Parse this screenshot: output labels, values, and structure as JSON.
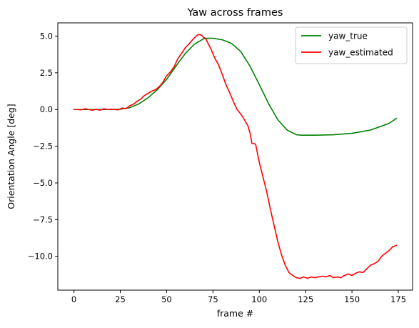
{
  "chart_data": {
    "type": "line",
    "title": "Yaw across frames",
    "xlabel": "frame #",
    "ylabel": "Orientation Angle [deg]",
    "xlim": [
      -8.7,
      182.7
    ],
    "ylim": [
      -12.3,
      5.9
    ],
    "xticks": [
      0,
      25,
      50,
      75,
      100,
      125,
      150,
      175
    ],
    "xtick_labels": [
      "0",
      "25",
      "50",
      "75",
      "100",
      "125",
      "150",
      "175"
    ],
    "yticks": [
      5.0,
      2.5,
      0.0,
      -2.5,
      -5.0,
      -7.5,
      -10.0
    ],
    "ytick_labels": [
      "5.0",
      "2.5",
      "0.0",
      "−2.5",
      "−5.0",
      "−7.5",
      "−10.0"
    ],
    "grid": false,
    "legend_position": "top-right",
    "series": [
      {
        "name": "yaw_true",
        "color": "#008000",
        "x": [
          0,
          10,
          20,
          25,
          30,
          35,
          40,
          45,
          50,
          55,
          60,
          65,
          70,
          72,
          75,
          80,
          85,
          90,
          95,
          100,
          105,
          110,
          115,
          120,
          123,
          125,
          130,
          140,
          150,
          160,
          170,
          174
        ],
        "y": [
          0.0,
          0.0,
          0.0,
          0.02,
          0.12,
          0.38,
          0.8,
          1.35,
          2.05,
          2.95,
          3.8,
          4.45,
          4.82,
          4.85,
          4.85,
          4.75,
          4.5,
          3.95,
          2.95,
          1.7,
          0.4,
          -0.7,
          -1.4,
          -1.72,
          -1.75,
          -1.75,
          -1.75,
          -1.72,
          -1.62,
          -1.4,
          -0.95,
          -0.6
        ]
      },
      {
        "name": "yaw_estimated",
        "color": "#ff0000",
        "x": [
          0,
          2,
          4,
          6,
          8,
          10,
          12,
          14,
          16,
          18,
          20,
          22,
          24,
          26,
          28,
          30,
          32,
          34,
          36,
          38,
          40,
          42,
          44,
          46,
          48,
          50,
          52,
          54,
          56,
          58,
          60,
          62,
          64,
          66,
          67,
          68,
          69,
          70,
          71,
          72,
          73,
          74,
          75,
          76,
          78,
          80,
          82,
          84,
          86,
          88,
          90,
          92,
          94,
          95,
          96,
          98,
          100,
          102,
          104,
          106,
          108,
          110,
          112,
          114,
          116,
          118,
          120,
          122,
          124,
          126,
          128,
          130,
          132,
          134,
          136,
          138,
          140,
          142,
          144,
          146,
          148,
          150,
          152,
          154,
          156,
          158,
          160,
          162,
          164,
          166,
          168,
          170,
          172,
          174
        ],
        "y": [
          0.0,
          0.0,
          -0.02,
          0.05,
          0.0,
          -0.05,
          0.02,
          -0.05,
          0.05,
          0.0,
          0.02,
          0.0,
          -0.02,
          0.1,
          0.05,
          0.25,
          0.35,
          0.55,
          0.7,
          0.95,
          1.1,
          1.25,
          1.35,
          1.55,
          1.85,
          2.3,
          2.55,
          2.9,
          3.45,
          3.8,
          4.2,
          4.45,
          4.75,
          5.0,
          5.1,
          5.1,
          5.05,
          4.9,
          4.85,
          4.6,
          4.35,
          4.1,
          3.8,
          3.5,
          3.05,
          2.4,
          1.7,
          1.15,
          0.55,
          0.0,
          -0.3,
          -0.7,
          -1.15,
          -1.6,
          -2.3,
          -2.35,
          -3.6,
          -4.6,
          -5.6,
          -6.8,
          -7.9,
          -9.0,
          -9.9,
          -10.6,
          -11.1,
          -11.3,
          -11.45,
          -11.5,
          -11.4,
          -11.5,
          -11.4,
          -11.45,
          -11.4,
          -11.35,
          -11.4,
          -11.3,
          -11.45,
          -11.4,
          -11.45,
          -11.3,
          -11.2,
          -11.3,
          -11.15,
          -11.05,
          -11.1,
          -10.85,
          -10.6,
          -10.5,
          -10.35,
          -10.0,
          -9.8,
          -9.6,
          -9.35,
          -9.25
        ]
      }
    ]
  }
}
